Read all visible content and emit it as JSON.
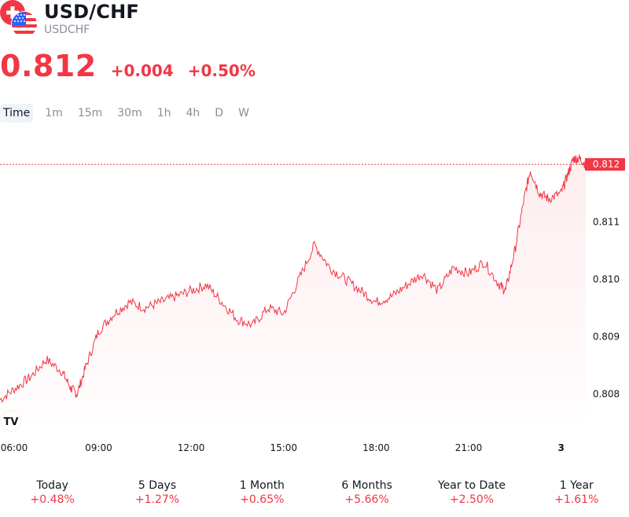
{
  "header": {
    "title": "USD/CHF",
    "subtitle": "USDCHF",
    "price": "0.812",
    "change": "+0.004",
    "change_pct": "+0.50%"
  },
  "tabs": [
    {
      "label": "Time",
      "active": true
    },
    {
      "label": "1m",
      "active": false
    },
    {
      "label": "15m",
      "active": false
    },
    {
      "label": "30m",
      "active": false
    },
    {
      "label": "1h",
      "active": false
    },
    {
      "label": "4h",
      "active": false
    },
    {
      "label": "D",
      "active": false
    },
    {
      "label": "W",
      "active": false
    }
  ],
  "colors": {
    "accent": "#f23645",
    "text": "#131722",
    "muted": "#8a8e97"
  },
  "chart_data": {
    "type": "area",
    "x_ticks": [
      "06:00",
      "09:00",
      "12:00",
      "15:00",
      "18:00",
      "21:00",
      "3"
    ],
    "y_ticks": [
      "0.808",
      "0.809",
      "0.810",
      "0.811"
    ],
    "last_price_label": "0.812",
    "last_price": 0.812,
    "y_range": [
      0.8075,
      0.8124
    ],
    "x_range_hours": [
      5.8,
      24.8
    ],
    "series": [
      {
        "x": [
          5.8,
          6.3,
          6.8,
          7.3,
          7.8,
          8.1,
          8.3,
          8.6,
          9.0,
          9.5,
          10.0,
          10.5,
          11.0,
          11.5,
          12.0,
          12.5,
          13.0,
          13.5,
          14.0,
          14.5,
          15.0,
          15.5,
          16.0,
          16.5,
          17.0,
          17.5,
          18.0,
          18.5,
          19.0,
          19.5,
          20.0,
          20.5,
          21.0,
          21.5,
          22.0,
          22.2,
          22.5,
          22.8,
          23.0,
          23.3,
          23.6,
          24.0,
          24.2,
          24.4,
          24.6,
          24.8
        ],
        "y": [
          0.8079,
          0.8081,
          0.8083,
          0.8086,
          0.8084,
          0.8081,
          0.808,
          0.8085,
          0.8091,
          0.8094,
          0.8096,
          0.8095,
          0.8096,
          0.8097,
          0.8098,
          0.8099,
          0.8096,
          0.8093,
          0.8092,
          0.8095,
          0.8094,
          0.81,
          0.8106,
          0.8102,
          0.81,
          0.8098,
          0.8096,
          0.8097,
          0.8099,
          0.8101,
          0.8098,
          0.8102,
          0.8101,
          0.8103,
          0.8099,
          0.8098,
          0.8105,
          0.8114,
          0.8119,
          0.8115,
          0.8114,
          0.8115,
          0.8118,
          0.8121,
          0.8121,
          0.812
        ]
      }
    ]
  },
  "stats": [
    {
      "label": "Today",
      "value": "+0.48%"
    },
    {
      "label": "5 Days",
      "value": "+1.27%"
    },
    {
      "label": "1 Month",
      "value": "+0.65%"
    },
    {
      "label": "6 Months",
      "value": "+5.66%"
    },
    {
      "label": "Year to Date",
      "value": "+2.50%"
    },
    {
      "label": "1 Year",
      "value": "+1.61%"
    }
  ]
}
